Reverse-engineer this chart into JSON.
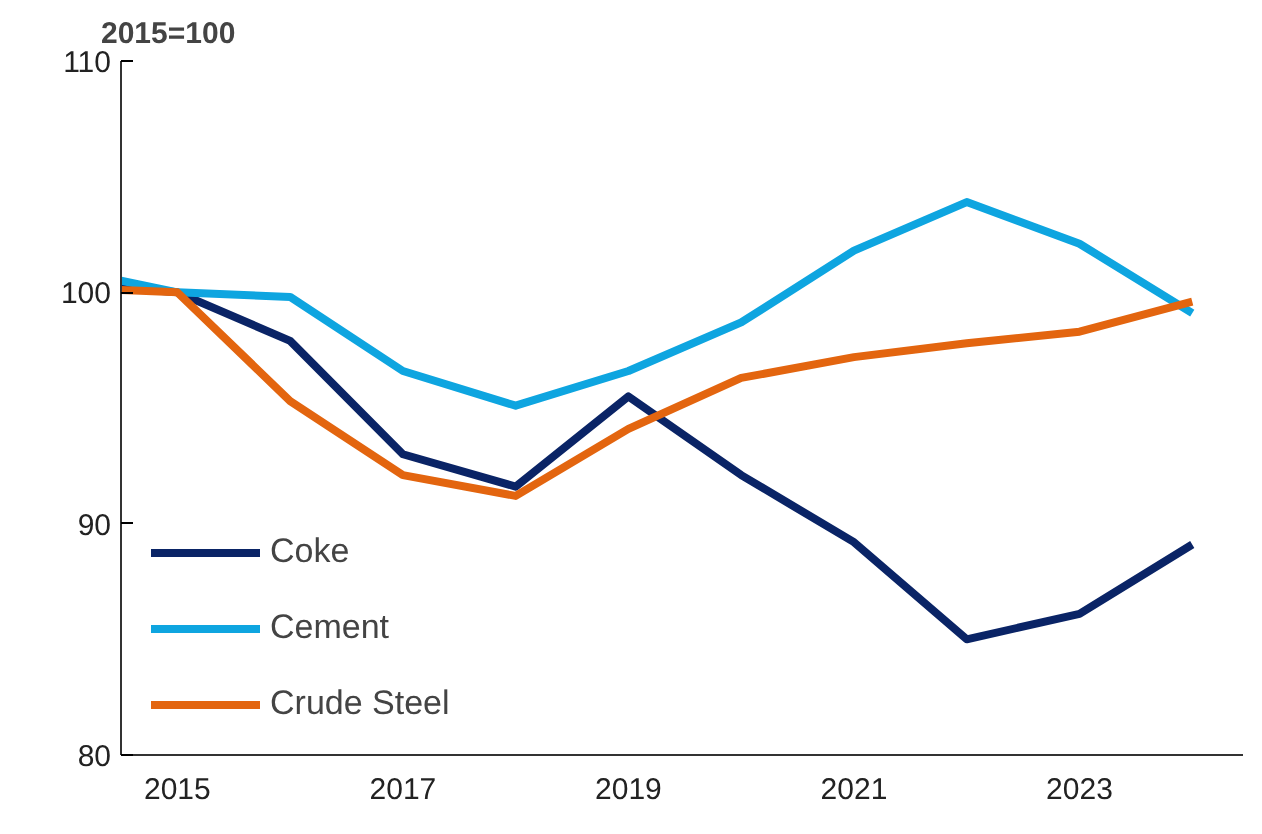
{
  "chart_data": {
    "type": "line",
    "title": "2015=100",
    "x": [
      2014.5,
      2015,
      2016,
      2017,
      2018,
      2019,
      2020,
      2021,
      2022,
      2023,
      2024
    ],
    "series": [
      {
        "name": "Coke",
        "color": "#0a2466",
        "values": [
          100.2,
          100,
          97.9,
          93.0,
          91.6,
          95.5,
          92.1,
          89.2,
          85.0,
          86.1,
          89.1
        ]
      },
      {
        "name": "Cement",
        "color": "#0ea5e0",
        "values": [
          100.5,
          100,
          99.8,
          96.6,
          95.1,
          96.6,
          98.7,
          101.8,
          103.9,
          102.1,
          99.1
        ]
      },
      {
        "name": "Crude Steel",
        "color": "#e3650f",
        "values": [
          100.1,
          100,
          95.3,
          92.1,
          91.2,
          94.1,
          96.3,
          97.2,
          97.8,
          98.3,
          99.6
        ]
      }
    ],
    "xlim": [
      2014.5,
      2024.45
    ],
    "xticks": [
      2015,
      2017,
      2019,
      2021,
      2023
    ],
    "ylim": [
      80,
      110
    ],
    "yticks": [
      80,
      90,
      100,
      110
    ],
    "grid": false,
    "legend": "bottom left",
    "marker": "none",
    "line_style": "solid"
  }
}
